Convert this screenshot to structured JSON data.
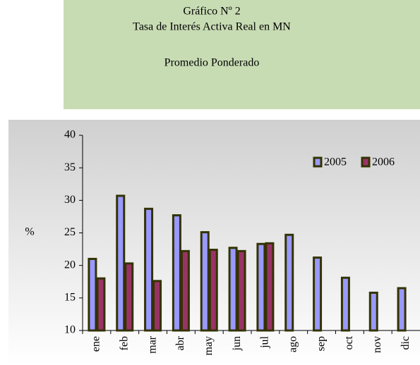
{
  "chart_data": {
    "type": "bar",
    "title": [
      "Gráfico Nº 2",
      "Tasa de Interés Activa Real en MN",
      "Promedio Ponderado"
    ],
    "ylabel": "%",
    "categories": [
      "ene",
      "feb",
      "mar",
      "abr",
      "may",
      "jun",
      "jul",
      "ago",
      "sep",
      "oct",
      "nov",
      "dic"
    ],
    "series": [
      {
        "name": "2005",
        "color": "#9999ff",
        "values": [
          21,
          30.7,
          28.7,
          27.7,
          25.1,
          22.7,
          23.3,
          24.7,
          21.2,
          18.1,
          15.8,
          16.5
        ]
      },
      {
        "name": "2006",
        "color": "#993366",
        "values": [
          18,
          20.3,
          17.6,
          22.2,
          22.4,
          22.2,
          23.4,
          null,
          null,
          null,
          null,
          null
        ]
      }
    ],
    "ylim": [
      10,
      40
    ],
    "yticks": [
      10,
      15,
      20,
      25,
      30,
      35,
      40
    ],
    "legend": "upper right"
  }
}
